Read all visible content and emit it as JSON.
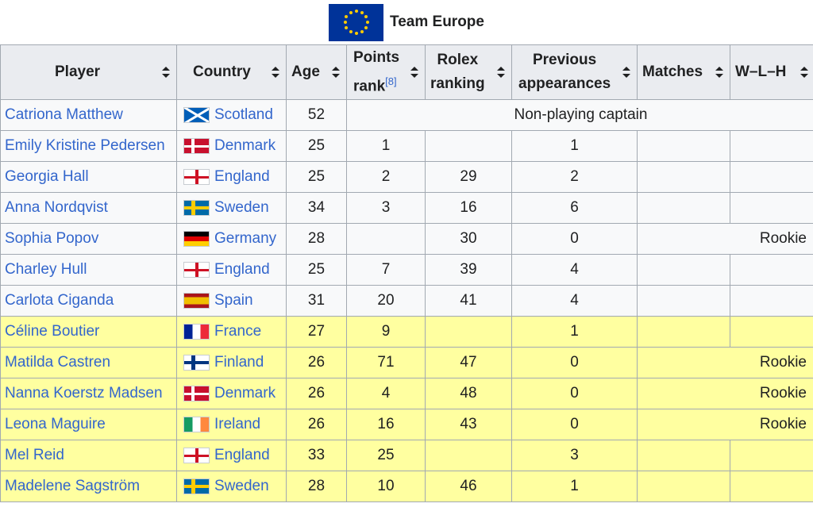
{
  "caption": {
    "title": "Team Europe",
    "flag_icon": "eu-flag-icon"
  },
  "headers": {
    "player": "Player",
    "country": "Country",
    "age": "Age",
    "points_rank_line1": "Points",
    "points_rank_line2": "rank",
    "points_rank_ref": "[8]",
    "rolex_line1": "Rolex",
    "rolex_line2": "ranking",
    "prev_line1": "Previous",
    "prev_line2": "appearances",
    "matches": "Matches",
    "wlh": "W–L–H"
  },
  "colors": {
    "link": "#3366cc",
    "header_bg": "#eaecf0",
    "row_bg": "#f8f9fa",
    "highlight_bg": "#ffffa0"
  },
  "rows": [
    {
      "player": "Catriona Matthew",
      "country": "Scotland",
      "flag": "scotland-flag-icon",
      "age": "52",
      "note": "Non-playing captain"
    },
    {
      "player": "Emily Kristine Pedersen",
      "country": "Denmark",
      "flag": "denmark-flag-icon",
      "age": "25",
      "points_rank": "1",
      "rolex": "",
      "prev": "1",
      "matches": "",
      "wlh": ""
    },
    {
      "player": "Georgia Hall",
      "country": "England",
      "flag": "england-flag-icon",
      "age": "25",
      "points_rank": "2",
      "rolex": "29",
      "prev": "2",
      "matches": "",
      "wlh": ""
    },
    {
      "player": "Anna Nordqvist",
      "country": "Sweden",
      "flag": "sweden-flag-icon",
      "age": "34",
      "points_rank": "3",
      "rolex": "16",
      "prev": "6",
      "matches": "",
      "wlh": ""
    },
    {
      "player": "Sophia Popov",
      "country": "Germany",
      "flag": "germany-flag-icon",
      "age": "28",
      "points_rank": "",
      "rolex": "30",
      "prev": "0",
      "rookie": "Rookie"
    },
    {
      "player": "Charley Hull",
      "country": "England",
      "flag": "england-flag-icon",
      "age": "25",
      "points_rank": "7",
      "rolex": "39",
      "prev": "4",
      "matches": "",
      "wlh": ""
    },
    {
      "player": "Carlota Ciganda",
      "country": "Spain",
      "flag": "spain-flag-icon",
      "age": "31",
      "points_rank": "20",
      "rolex": "41",
      "prev": "4",
      "matches": "",
      "wlh": ""
    },
    {
      "player": "Céline Boutier",
      "country": "France",
      "flag": "france-flag-icon",
      "age": "27",
      "points_rank": "9",
      "rolex": "",
      "prev": "1",
      "matches": "",
      "wlh": ""
    },
    {
      "player": "Matilda Castren",
      "country": "Finland",
      "flag": "finland-flag-icon",
      "age": "26",
      "points_rank": "71",
      "rolex": "47",
      "prev": "0",
      "rookie": "Rookie"
    },
    {
      "player": "Nanna Koerstz Madsen",
      "country": "Denmark",
      "flag": "denmark-flag-icon",
      "age": "26",
      "points_rank": "4",
      "rolex": "48",
      "prev": "0",
      "rookie": "Rookie"
    },
    {
      "player": "Leona Maguire",
      "country": "Ireland",
      "flag": "ireland-flag-icon",
      "age": "26",
      "points_rank": "16",
      "rolex": "43",
      "prev": "0",
      "rookie": "Rookie"
    },
    {
      "player": "Mel Reid",
      "country": "England",
      "flag": "england-flag-icon",
      "age": "33",
      "points_rank": "25",
      "rolex": "",
      "prev": "3",
      "matches": "",
      "wlh": ""
    },
    {
      "player": "Madelene Sagström",
      "country": "Sweden",
      "flag": "sweden-flag-icon",
      "age": "28",
      "points_rank": "10",
      "rolex": "46",
      "prev": "1",
      "matches": "",
      "wlh": ""
    }
  ]
}
